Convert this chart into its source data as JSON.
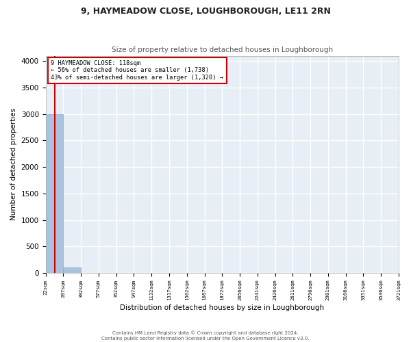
{
  "title_line1": "9, HAYMEADOW CLOSE, LOUGHBOROUGH, LE11 2RN",
  "title_line2": "Size of property relative to detached houses in Loughborough",
  "xlabel": "Distribution of detached houses by size in Loughborough",
  "ylabel": "Number of detached properties",
  "bin_edges": [
    22,
    207,
    392,
    577,
    762,
    947,
    1132,
    1317,
    1502,
    1687,
    1872,
    2056,
    2241,
    2426,
    2611,
    2796,
    2981,
    3166,
    3351,
    3536,
    3721
  ],
  "bar_heights": [
    3000,
    110,
    5,
    3,
    2,
    2,
    1,
    1,
    1,
    1,
    1,
    0,
    0,
    0,
    0,
    0,
    0,
    0,
    0,
    0
  ],
  "bar_color": "#aac4dd",
  "bar_edgecolor": "#7baac4",
  "property_size": 118,
  "annotation_line1": "9 HAYMEADOW CLOSE: 118sqm",
  "annotation_line2": "← 56% of detached houses are smaller (1,738)",
  "annotation_line3": "43% of semi-detached houses are larger (1,320) →",
  "annotation_box_color": "#cc0000",
  "vline_color": "#cc0000",
  "ylim": [
    0,
    4100
  ],
  "yticks": [
    0,
    500,
    1000,
    1500,
    2000,
    2500,
    3000,
    3500,
    4000
  ],
  "background_color": "#e8eef5",
  "grid_color": "#ffffff",
  "footer_line1": "Contains HM Land Registry data © Crown copyright and database right 2024.",
  "footer_line2": "Contains public sector information licensed under the Open Government Licence v3.0."
}
